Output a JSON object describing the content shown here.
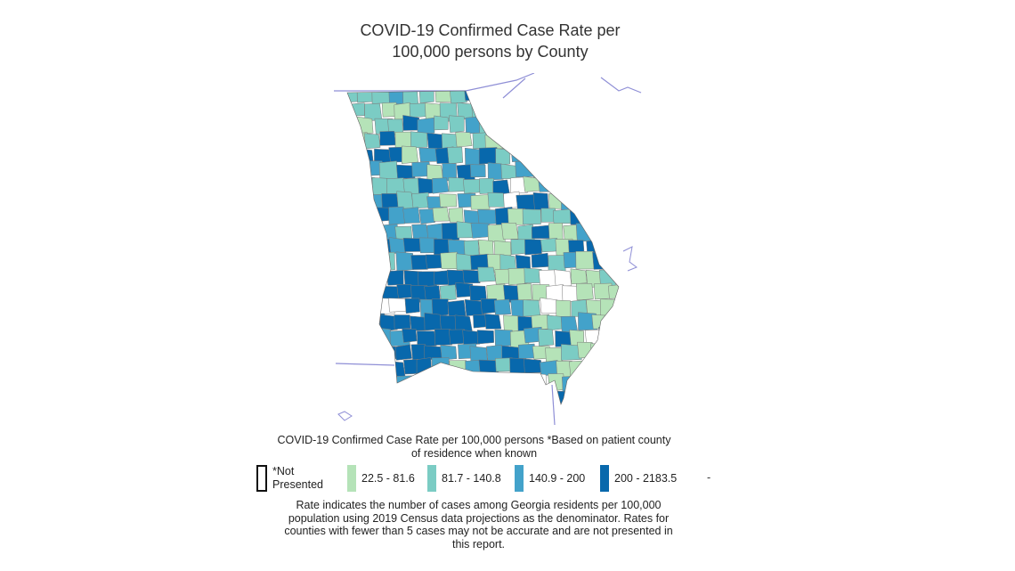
{
  "title_line1": "COVID-19 Confirmed Case Rate per",
  "title_line2": "100,000 persons by County",
  "legend": {
    "title_line1": "COVID-19 Confirmed Case Rate per 100,000 persons *Based on patient county",
    "title_line2": "of residence when known",
    "not_presented_line1": "*Not",
    "not_presented_line2": "Presented",
    "items": [
      {
        "label": "22.5 - 81.6",
        "color": "#b5e3b8"
      },
      {
        "label": "81.7 - 140.8",
        "color": "#7bccc4"
      },
      {
        "label": "140.9 - 200",
        "color": "#43a2ca"
      },
      {
        "label": "200 - 2183.5",
        "color": "#0868ac"
      }
    ],
    "trailing": "-"
  },
  "note_lines": [
    "Rate indicates the number of cases among Georgia residents per 100,000",
    "population using 2019 Census data projections as the denominator. Rates for",
    "counties with fewer than 5 cases may not be accurate and are not presented in",
    "this report."
  ],
  "colors": {
    "low": "#b5e3b8",
    "mid_low": "#7bccc4",
    "mid_high": "#43a2ca",
    "high": "#0868ac",
    "not_presented": "#ffffff",
    "border_lines": "#8f8fd6"
  }
}
